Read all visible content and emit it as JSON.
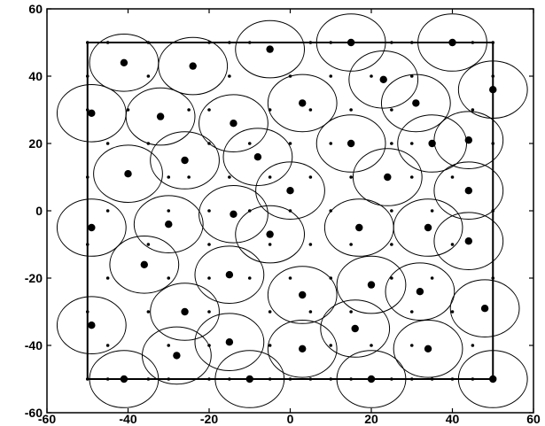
{
  "chart_data": {
    "type": "scatter",
    "title": "",
    "xlabel": "",
    "ylabel": "",
    "xlim": [
      -60,
      60
    ],
    "ylim": [
      -60,
      60
    ],
    "xticks": [
      -60,
      -40,
      -20,
      0,
      20,
      40,
      60
    ],
    "yticks": [
      -60,
      -40,
      -20,
      0,
      20,
      40,
      60
    ],
    "x_tick_labels": [
      "-60",
      "-40",
      "-20",
      "0",
      "20",
      "40",
      "60"
    ],
    "y_tick_labels": [
      "-60",
      "-40",
      "-20",
      "0",
      "20",
      "40",
      "60"
    ],
    "grid": false,
    "region": {
      "x": [
        -50,
        50
      ],
      "y": [
        -50,
        50
      ]
    },
    "coverage_radius": 8.5,
    "series": [
      {
        "type": "centers",
        "points": [
          [
            -41,
            44
          ],
          [
            -24,
            43
          ],
          [
            -5,
            48
          ],
          [
            15,
            50
          ],
          [
            40,
            50
          ],
          [
            -49,
            29
          ],
          [
            -32,
            28
          ],
          [
            -14,
            26
          ],
          [
            3,
            32
          ],
          [
            23,
            39
          ],
          [
            31,
            32
          ],
          [
            50,
            36
          ],
          [
            -26,
            15
          ],
          [
            -40,
            11
          ],
          [
            -8,
            16
          ],
          [
            15,
            20
          ],
          [
            35,
            20
          ],
          [
            44,
            21
          ],
          [
            24,
            10
          ],
          [
            0,
            6
          ],
          [
            44,
            6
          ],
          [
            -49,
            -5
          ],
          [
            -14,
            -1
          ],
          [
            -30,
            -4
          ],
          [
            -5,
            -7
          ],
          [
            17,
            -5
          ],
          [
            34,
            -5
          ],
          [
            44,
            -9
          ],
          [
            -36,
            -16
          ],
          [
            -15,
            -19
          ],
          [
            3,
            -25
          ],
          [
            20,
            -22
          ],
          [
            32,
            -24
          ],
          [
            -49,
            -34
          ],
          [
            -26,
            -30
          ],
          [
            -28,
            -43
          ],
          [
            -15,
            -39
          ],
          [
            3,
            -41
          ],
          [
            16,
            -35
          ],
          [
            34,
            -41
          ],
          [
            48,
            -29
          ],
          [
            -41,
            -50
          ],
          [
            -10,
            -50
          ],
          [
            20,
            -50
          ],
          [
            50,
            -50
          ]
        ]
      },
      {
        "type": "grid-nodes",
        "points": [
          [
            -50,
            50
          ],
          [
            -45,
            50
          ],
          [
            -35,
            50
          ],
          [
            -20,
            50
          ],
          [
            -15,
            50
          ],
          [
            -10,
            50
          ],
          [
            5,
            50
          ],
          [
            10,
            50
          ],
          [
            25,
            50
          ],
          [
            30,
            50
          ],
          [
            45,
            50
          ],
          [
            50,
            50
          ],
          [
            -50,
            40
          ],
          [
            -35,
            40
          ],
          [
            -15,
            40
          ],
          [
            0,
            40
          ],
          [
            10,
            40
          ],
          [
            20,
            40
          ],
          [
            30,
            40
          ],
          [
            50,
            40
          ],
          [
            -50,
            30
          ],
          [
            -40,
            30
          ],
          [
            -25,
            30
          ],
          [
            -20,
            30
          ],
          [
            -5,
            30
          ],
          [
            5,
            30
          ],
          [
            15,
            30
          ],
          [
            25,
            30
          ],
          [
            45,
            30
          ],
          [
            -45,
            20
          ],
          [
            -35,
            20
          ],
          [
            -20,
            20
          ],
          [
            -10,
            20
          ],
          [
            0,
            20
          ],
          [
            10,
            20
          ],
          [
            25,
            20
          ],
          [
            30,
            20
          ],
          [
            50,
            20
          ],
          [
            -50,
            10
          ],
          [
            -30,
            10
          ],
          [
            -25,
            10
          ],
          [
            -15,
            10
          ],
          [
            -5,
            10
          ],
          [
            5,
            10
          ],
          [
            15,
            10
          ],
          [
            30,
            10
          ],
          [
            40,
            10
          ],
          [
            -45,
            0
          ],
          [
            -30,
            0
          ],
          [
            -20,
            0
          ],
          [
            -10,
            0
          ],
          [
            0,
            0
          ],
          [
            10,
            0
          ],
          [
            25,
            0
          ],
          [
            35,
            0
          ],
          [
            50,
            0
          ],
          [
            -50,
            -10
          ],
          [
            -35,
            -10
          ],
          [
            -20,
            -10
          ],
          [
            -5,
            -10
          ],
          [
            5,
            -10
          ],
          [
            15,
            -10
          ],
          [
            25,
            -10
          ],
          [
            40,
            -10
          ],
          [
            -45,
            -20
          ],
          [
            -30,
            -20
          ],
          [
            -20,
            -20
          ],
          [
            -10,
            -20
          ],
          [
            0,
            -20
          ],
          [
            10,
            -20
          ],
          [
            25,
            -20
          ],
          [
            35,
            -20
          ],
          [
            50,
            -20
          ],
          [
            -50,
            -30
          ],
          [
            -35,
            -30
          ],
          [
            -20,
            -30
          ],
          [
            -5,
            -30
          ],
          [
            5,
            -30
          ],
          [
            15,
            -30
          ],
          [
            30,
            -30
          ],
          [
            40,
            -30
          ],
          [
            -45,
            -40
          ],
          [
            -30,
            -40
          ],
          [
            -20,
            -40
          ],
          [
            -5,
            -40
          ],
          [
            10,
            -40
          ],
          [
            20,
            -40
          ],
          [
            30,
            -40
          ],
          [
            45,
            -40
          ],
          [
            -50,
            -50
          ],
          [
            -45,
            -50
          ],
          [
            -35,
            -50
          ],
          [
            -30,
            -50
          ],
          [
            -20,
            -50
          ],
          [
            -15,
            -50
          ],
          [
            -5,
            -50
          ],
          [
            0,
            -50
          ],
          [
            5,
            -50
          ],
          [
            10,
            -50
          ],
          [
            15,
            -50
          ],
          [
            25,
            -50
          ],
          [
            30,
            -50
          ],
          [
            35,
            -50
          ],
          [
            40,
            -50
          ],
          [
            45,
            -50
          ]
        ]
      }
    ]
  }
}
